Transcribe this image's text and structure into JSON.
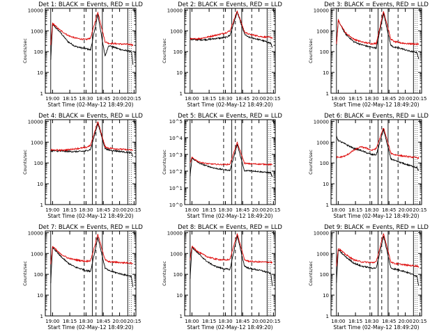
{
  "colors": {
    "events": "#000000",
    "lld": "#dd0000",
    "axis": "#000000",
    "background": "#ffffff"
  },
  "chart_data": [
    {
      "type": "line",
      "title": "Det 1: BLACK = Events, RED = LLD",
      "xlabel": "Start Time (02-May-12 18:49:20)",
      "ylabel": "Counts/sec",
      "ylog": true,
      "ylim": [
        1,
        12000
      ],
      "yticks": [
        "1",
        "10",
        "100",
        "1000",
        "10000"
      ],
      "xticks": [
        "19:00",
        "18:15",
        "18:30",
        "18:45",
        "20:00",
        "20:15"
      ],
      "series": [
        {
          "label": "BLACK",
          "values": [
            40,
            2000,
            900,
            300,
            180,
            150,
            140,
            120,
            6000,
            60,
            200,
            150,
            120,
            100,
            20
          ]
        },
        {
          "label": "RED",
          "values": [
            200,
            2300,
            1100,
            600,
            450,
            400,
            380,
            450,
            8000,
            300,
            250,
            240,
            230,
            220,
            200
          ]
        }
      ]
    },
    {
      "type": "line",
      "title": "Det 2: BLACK = Events, RED = LLD",
      "xlabel": "Start Time (02-May-12 18:49:20)",
      "ylabel": "Counts/sec",
      "ylog": true,
      "ylim": [
        1,
        12000
      ],
      "yticks": [
        "1",
        "10",
        "100",
        "1000",
        "10000"
      ],
      "xticks": [
        "18:00",
        "18:15",
        "18:30",
        "18:45",
        "20:00",
        "20:15"
      ],
      "series": [
        {
          "label": "BLACK",
          "values": [
            400,
            380,
            370,
            380,
            420,
            450,
            480,
            600,
            8000,
            700,
            500,
            420,
            350,
            250,
            150
          ]
        },
        {
          "label": "RED",
          "values": [
            420,
            400,
            420,
            500,
            600,
            700,
            800,
            1000,
            9000,
            900,
            700,
            600,
            520,
            480,
            450
          ]
        }
      ]
    },
    {
      "type": "line",
      "title": "Det 3: BLACK = Events, RED = LLD",
      "xlabel": "Start Time (02-May-12 18:49:20)",
      "ylabel": "Counts/sec",
      "ylog": true,
      "ylim": [
        1,
        12000
      ],
      "yticks": [
        "1",
        "10",
        "100",
        "1000",
        "10000"
      ],
      "xticks": [
        "18:00",
        "18:15",
        "18:30",
        "18:45",
        "20:00",
        "20:15"
      ],
      "series": [
        {
          "label": "BLACK",
          "values": [
            200,
            3000,
            700,
            300,
            220,
            180,
            160,
            150,
            7000,
            200,
            160,
            140,
            110,
            90,
            40
          ]
        },
        {
          "label": "RED",
          "values": [
            220,
            3200,
            800,
            400,
            300,
            260,
            240,
            250,
            9000,
            400,
            300,
            260,
            240,
            230,
            220
          ]
        }
      ]
    },
    {
      "type": "line",
      "title": "Det 4: BLACK = Events, RED = LLD",
      "xlabel": "Start Time (02-May-12 18:49:20)",
      "ylabel": "Counts/sec",
      "ylog": true,
      "ylim": [
        1,
        12000
      ],
      "yticks": [
        "1",
        "10",
        "100",
        "1000",
        "10000"
      ],
      "xticks": [
        "19:00",
        "18:15",
        "18:30",
        "18:45",
        "20:00",
        "20:15"
      ],
      "series": [
        {
          "label": "BLACK",
          "values": [
            380,
            380,
            370,
            360,
            350,
            360,
            380,
            450,
            8000,
            500,
            420,
            380,
            350,
            300,
            200
          ]
        },
        {
          "label": "RED",
          "values": [
            420,
            420,
            410,
            430,
            480,
            520,
            560,
            700,
            10000,
            600,
            520,
            480,
            450,
            420,
            400
          ]
        }
      ]
    },
    {
      "type": "line",
      "title": "Det 5: BLACK = Events, RED = LLD",
      "xlabel": "Start Time (02-May-12 18:49:20)",
      "ylabel": "Counts/sec",
      "ylog": true,
      "ylim": [
        1,
        120000
      ],
      "yticks": [
        "10^0",
        "10^1",
        "10^2",
        "10^3",
        "10^4",
        "10^5"
      ],
      "xticks": [
        "18:00",
        "18:15",
        "18:30",
        "18:45",
        "20:00",
        "20:15"
      ],
      "series": [
        {
          "label": "BLACK",
          "values": [
            50,
            600,
            300,
            200,
            150,
            130,
            120,
            110,
            4000,
            100,
            110,
            100,
            90,
            80,
            40
          ]
        },
        {
          "label": "RED",
          "values": [
            300,
            650,
            350,
            280,
            260,
            250,
            250,
            260,
            5000,
            300,
            280,
            270,
            260,
            250,
            240
          ]
        }
      ]
    },
    {
      "type": "line",
      "title": "Det 6: BLACK = Events, RED = LLD",
      "xlabel": "Start Time (02-May-12 18:49:20)",
      "ylabel": "Counts/sec",
      "ylog": true,
      "ylim": [
        1,
        12000
      ],
      "yticks": [
        "1",
        "10",
        "100",
        "1000",
        "10000"
      ],
      "xticks": [
        "18:00",
        "18:15",
        "18:30",
        "18:45",
        "20:00",
        "20:15"
      ],
      "series": [
        {
          "label": "BLACK",
          "values": [
            2000,
            1200,
            800,
            500,
            400,
            300,
            250,
            250,
            4000,
            160,
            130,
            100,
            80,
            60,
            40
          ]
        },
        {
          "label": "RED",
          "values": [
            200,
            180,
            220,
            400,
            600,
            500,
            400,
            500,
            5000,
            300,
            250,
            220,
            200,
            180,
            170
          ]
        }
      ]
    },
    {
      "type": "line",
      "title": "Det 7: BLACK = Events, RED = LLD",
      "xlabel": "Start Time (02-May-12 18:49:20)",
      "ylabel": "Counts/sec",
      "ylog": true,
      "ylim": [
        1,
        12000
      ],
      "yticks": [
        "1",
        "10",
        "100",
        "1000",
        "10000"
      ],
      "xticks": [
        "19:00",
        "18:15",
        "18:30",
        "18:45",
        "20:00",
        "20:15"
      ],
      "series": [
        {
          "label": "BLACK",
          "values": [
            40,
            2000,
            800,
            350,
            220,
            180,
            150,
            140,
            6000,
            200,
            150,
            120,
            100,
            80,
            20
          ]
        },
        {
          "label": "RED",
          "values": [
            300,
            2200,
            1000,
            600,
            500,
            450,
            420,
            460,
            8000,
            500,
            400,
            380,
            360,
            350,
            330
          ]
        }
      ]
    },
    {
      "type": "line",
      "title": "Det 8: BLACK = Events, RED = LLD",
      "xlabel": "Start Time (02-May-12 18:49:20)",
      "ylabel": "Counts/sec",
      "ylog": true,
      "ylim": [
        1,
        12000
      ],
      "yticks": [
        "1",
        "10",
        "100",
        "1000",
        "10000"
      ],
      "xticks": [
        "18:00",
        "18:15",
        "18:30",
        "18:45",
        "20:00",
        "20:15"
      ],
      "series": [
        {
          "label": "BLACK",
          "values": [
            60,
            2000,
            900,
            400,
            250,
            200,
            180,
            170,
            7000,
            250,
            200,
            170,
            150,
            110,
            25
          ]
        },
        {
          "label": "RED",
          "values": [
            500,
            2200,
            1100,
            700,
            550,
            500,
            480,
            520,
            9000,
            500,
            430,
            400,
            390,
            380,
            360
          ]
        }
      ]
    },
    {
      "type": "line",
      "title": "Det 9: BLACK = Events, RED = LLD",
      "xlabel": "Start Time (02-May-12 18:49:20)",
      "ylabel": "Counts/sec",
      "ylog": true,
      "ylim": [
        1,
        12000
      ],
      "yticks": [
        "1",
        "10",
        "100",
        "1000",
        "10000"
      ],
      "xticks": [
        "18:00",
        "18:15",
        "18:30",
        "18:45",
        "20:00",
        "20:15"
      ],
      "series": [
        {
          "label": "BLACK",
          "values": [
            40,
            1500,
            700,
            350,
            250,
            220,
            200,
            200,
            7000,
            200,
            180,
            150,
            120,
            80,
            25
          ]
        },
        {
          "label": "RED",
          "values": [
            250,
            1800,
            900,
            500,
            400,
            380,
            360,
            400,
            9000,
            400,
            330,
            300,
            270,
            250,
            230
          ]
        }
      ]
    }
  ]
}
